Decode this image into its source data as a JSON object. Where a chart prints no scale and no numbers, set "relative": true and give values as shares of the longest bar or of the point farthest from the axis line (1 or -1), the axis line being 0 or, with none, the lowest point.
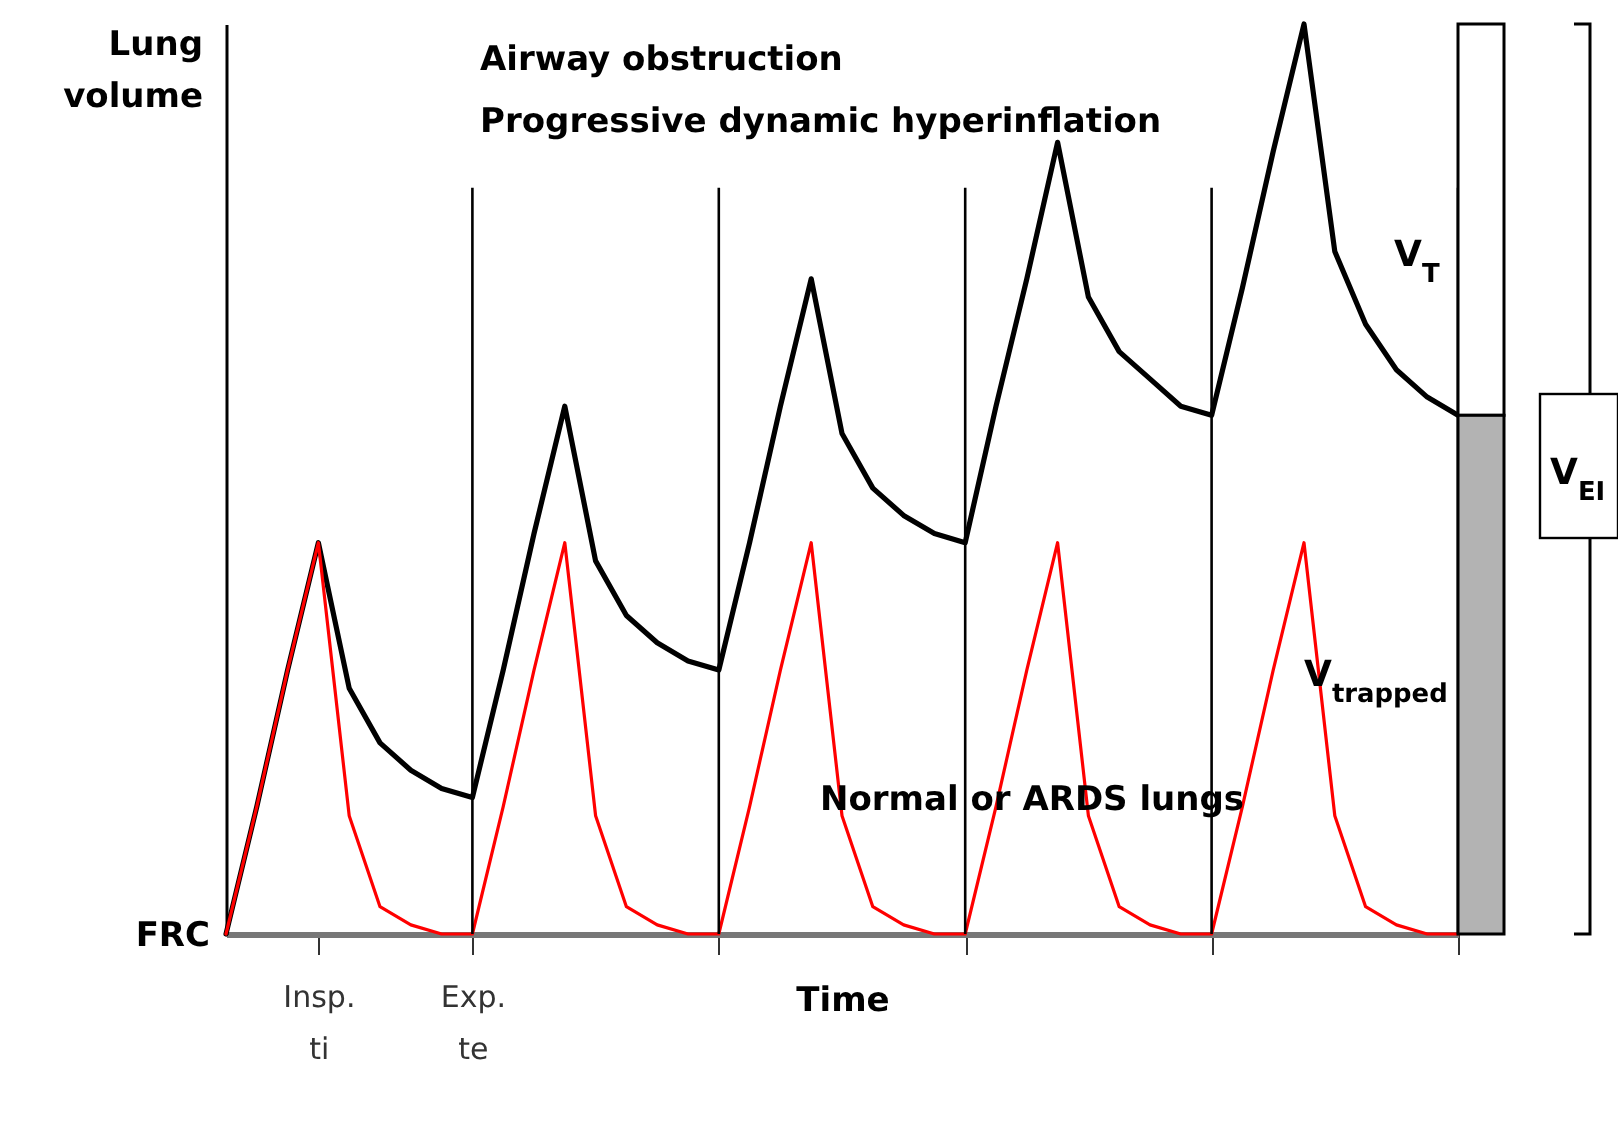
{
  "chart_data": {
    "type": "line",
    "relative": true,
    "ylabel": "Lung volume",
    "xlabel": "Time",
    "grid": "x",
    "categories": [
      null,
      null,
      null,
      "Insp. ti",
      null,
      null,
      null,
      null,
      "Exp. te",
      null,
      null,
      null,
      null,
      null,
      null,
      null,
      null,
      null,
      null,
      null,
      null,
      null,
      null,
      null,
      null,
      null,
      null,
      null,
      null,
      null,
      null,
      null,
      null,
      null,
      null,
      null,
      null,
      null,
      null,
      null,
      null
    ],
    "series": [
      {
        "color": "#000000",
        "values": [
          0,
          0.14,
          0.29,
          0.43,
          0.27,
          0.21,
          0.18,
          0.16,
          0.15,
          0.29,
          0.44,
          0.58,
          0.41,
          0.35,
          0.32,
          0.3,
          0.29,
          0.43,
          0.58,
          0.72,
          0.55,
          0.49,
          0.46,
          0.44,
          0.43,
          0.58,
          0.72,
          0.87,
          0.7,
          0.64,
          0.61,
          0.58,
          0.57,
          0.71,
          0.86,
          1,
          0.75,
          0.67,
          0.62,
          0.59,
          0.57
        ]
      },
      {
        "name": "Normal or ARDS lungs",
        "color": "#ff0000",
        "values": [
          0,
          0.14,
          0.29,
          0.43,
          0.13,
          0.03,
          0.01,
          0,
          0,
          0.14,
          0.29,
          0.43,
          0.13,
          0.03,
          0.01,
          0,
          0,
          0.14,
          0.29,
          0.43,
          0.13,
          0.03,
          0.01,
          0,
          0,
          0.14,
          0.29,
          0.43,
          0.13,
          0.03,
          0.01,
          0,
          0,
          0.14,
          0.29,
          0.43,
          0.13,
          0.03,
          0.01,
          0,
          0
        ]
      }
    ],
    "annotations": [
      "Airway obstruction",
      "Progressive dynamic hyperinflation",
      "FRC",
      "V$_{T}$",
      "V$_{trapped}$",
      "V$_{EI}$"
    ]
  }
}
